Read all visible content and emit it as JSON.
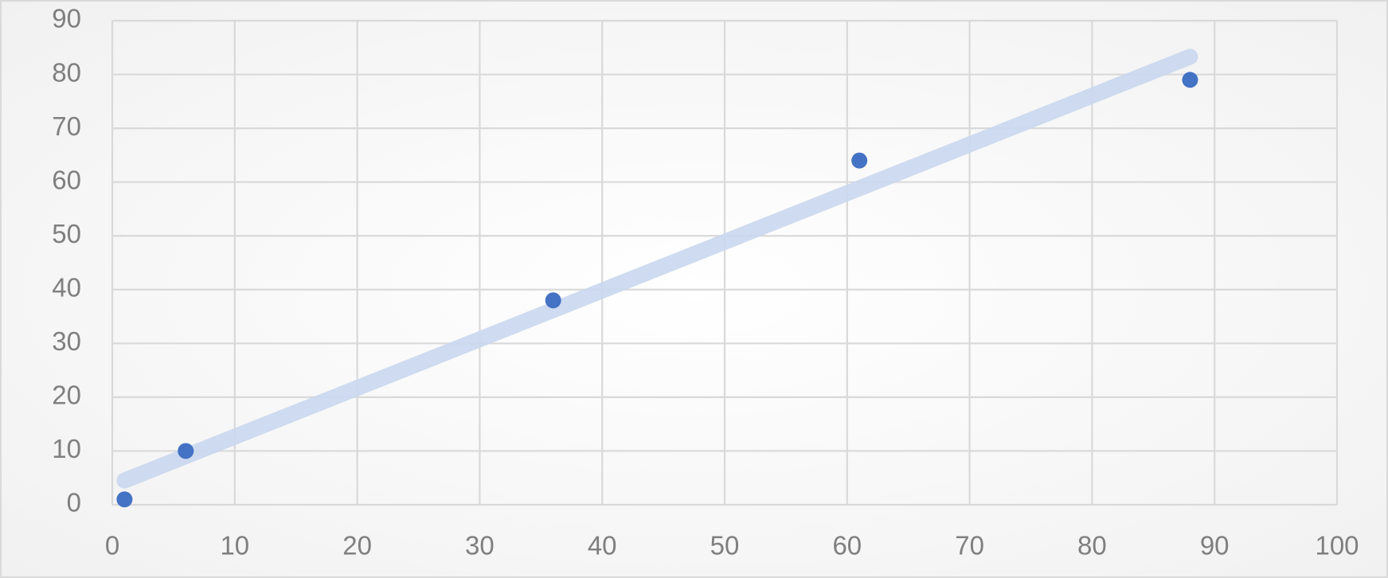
{
  "chart_data": {
    "type": "scatter",
    "x": [
      1,
      6,
      36,
      61,
      88
    ],
    "values": [
      1,
      10,
      38,
      64,
      79
    ],
    "color": "#4472c4",
    "trendline": {
      "x": [
        1,
        88
      ],
      "values": [
        4.5,
        83.3
      ],
      "color": "#c9d7ee"
    },
    "xlim": [
      0,
      100
    ],
    "xticks": [
      0,
      10,
      20,
      30,
      40,
      50,
      60,
      70,
      80,
      90,
      100
    ],
    "ylim": [
      0,
      90
    ],
    "yticks": [
      0,
      10,
      20,
      30,
      40,
      50,
      60,
      70,
      80,
      90
    ],
    "grid": true
  }
}
